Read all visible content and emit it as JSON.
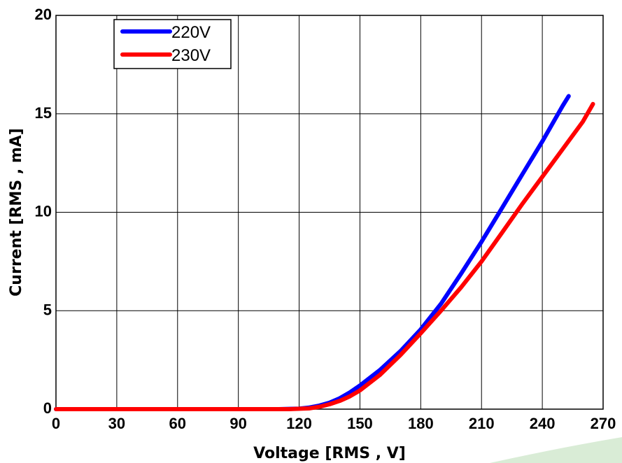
{
  "chart_data": {
    "type": "line",
    "xlabel": "Voltage [RMS , V]",
    "ylabel": "Current [RMS , mA]",
    "xlim": [
      0,
      270
    ],
    "ylim": [
      0,
      20
    ],
    "xticks": [
      "0",
      "30",
      "60",
      "90",
      "120",
      "150",
      "180",
      "210",
      "240",
      "270"
    ],
    "yticks": [
      "0",
      "5",
      "10",
      "15",
      "20"
    ],
    "grid": true,
    "legend_position": "top-left",
    "series": [
      {
        "name": "220V",
        "color": "#0000ff",
        "x": [
          0,
          110,
          120,
          125,
          130,
          135,
          140,
          145,
          150,
          160,
          170,
          180,
          190,
          200,
          210,
          220,
          230,
          240,
          250,
          253
        ],
        "y": [
          0,
          0,
          0.03,
          0.08,
          0.18,
          0.33,
          0.55,
          0.85,
          1.2,
          2.0,
          2.95,
          4.05,
          5.35,
          6.9,
          8.5,
          10.2,
          11.9,
          13.6,
          15.4,
          15.9
        ]
      },
      {
        "name": "230V",
        "color": "#ff0000",
        "x": [
          0,
          115,
          125,
          130,
          135,
          140,
          145,
          150,
          160,
          170,
          180,
          190,
          200,
          210,
          220,
          230,
          240,
          250,
          260,
          265
        ],
        "y": [
          0,
          0,
          0.04,
          0.12,
          0.25,
          0.42,
          0.65,
          0.95,
          1.75,
          2.75,
          3.85,
          5.0,
          6.2,
          7.5,
          8.95,
          10.4,
          11.8,
          13.2,
          14.6,
          15.5
        ]
      }
    ]
  }
}
